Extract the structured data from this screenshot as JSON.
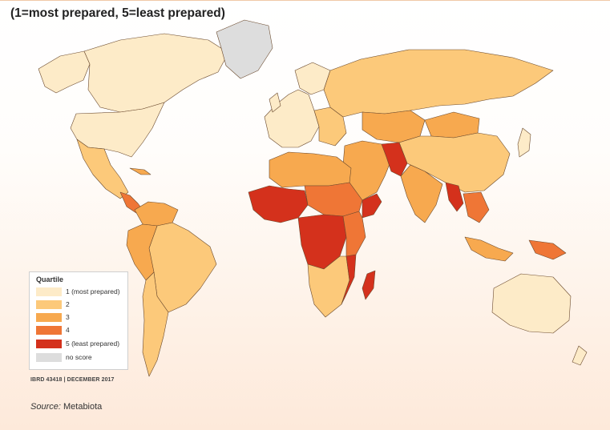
{
  "title": "(1=most prepared, 5=least prepared)",
  "colors": {
    "q1": "#fdebc8",
    "q2": "#fcc97a",
    "q3": "#f7a94f",
    "q4": "#ef7636",
    "q5": "#d4311c",
    "no_score": "#dddddd",
    "border": "#6b4a2e"
  },
  "legend": {
    "title": "Quartile",
    "items": [
      {
        "label": "1 (most prepared)",
        "color": "#fdebc8"
      },
      {
        "label": "2",
        "color": "#fcc97a"
      },
      {
        "label": "3",
        "color": "#f7a94f"
      },
      {
        "label": "4",
        "color": "#ef7636"
      },
      {
        "label": "5 (least prepared)",
        "color": "#d4311c"
      },
      {
        "label": "no score",
        "color": "#dddddd"
      }
    ]
  },
  "map_id": "IBRD 43418  |  DECEMBER 2017",
  "source": {
    "label": "Source:",
    "value": "Metabiota"
  }
}
